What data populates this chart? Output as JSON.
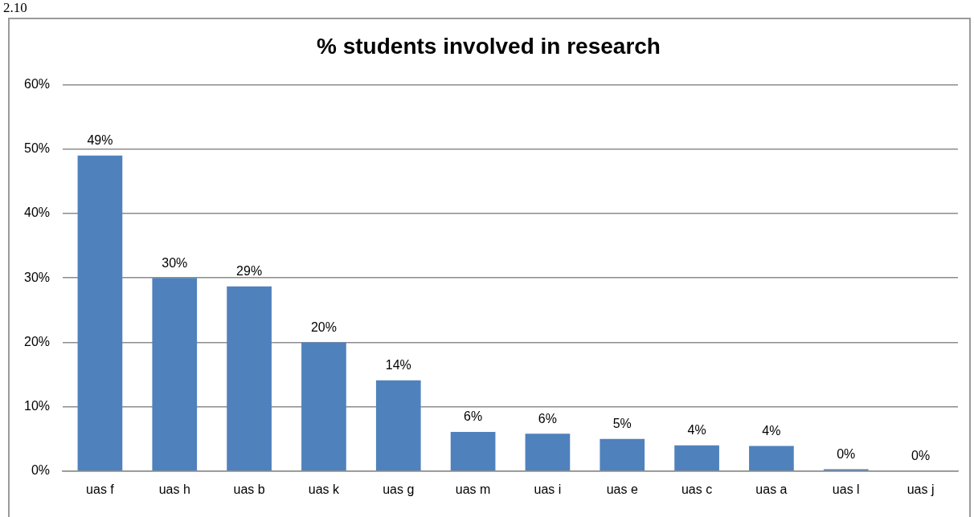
{
  "chart_data": {
    "type": "bar",
    "title": "% students involved in research",
    "annotations": [
      "2.10"
    ],
    "categories": [
      "uas f",
      "uas h",
      "uas b",
      "uas k",
      "uas g",
      "uas m",
      "uas i",
      "uas e",
      "uas c",
      "uas a",
      "uas l",
      "uas j"
    ],
    "values": [
      49,
      30,
      28.7,
      20,
      14.1,
      6.1,
      5.8,
      5,
      4,
      3.9,
      0.3,
      0
    ],
    "value_labels": [
      "49%",
      "30%",
      "29%",
      "20%",
      "14%",
      "6%",
      "6%",
      "5%",
      "4%",
      "4%",
      "0%",
      "0%"
    ],
    "color": "#4f81bd",
    "ylim": [
      0,
      60
    ],
    "yticks": [
      {
        "value": 0,
        "label": "0%"
      },
      {
        "value": 10,
        "label": "10%"
      },
      {
        "value": 20,
        "label": "20%"
      },
      {
        "value": 30,
        "label": "30%"
      },
      {
        "value": 40,
        "label": "40%"
      },
      {
        "value": 50,
        "label": "50%"
      },
      {
        "value": 60,
        "label": "60%"
      }
    ],
    "grid": "y"
  }
}
